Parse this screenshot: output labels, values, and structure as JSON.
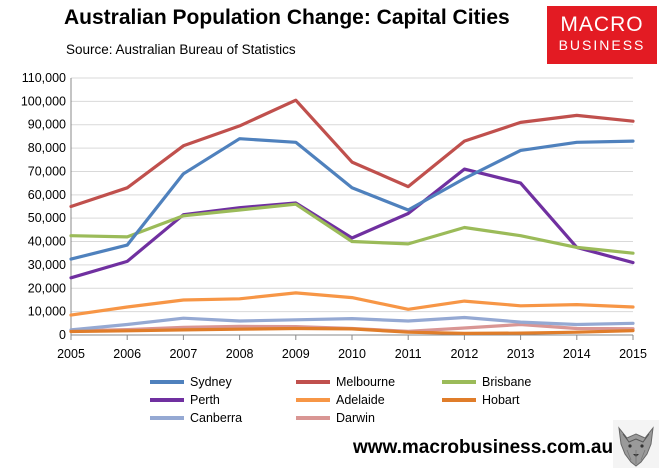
{
  "title": "Australian Population Change: Capital Cities",
  "source": "Source: Australian Bureau of Statistics",
  "logo": {
    "line1": "MACRO",
    "line2": "BUSINESS",
    "color": "#e31b23"
  },
  "website": "www.macrobusiness.com.au",
  "chart_data": {
    "type": "line",
    "x": [
      "2005",
      "2006",
      "2007",
      "2008",
      "2009",
      "2010",
      "2011",
      "2012",
      "2013",
      "2014",
      "2015"
    ],
    "ylim": [
      0,
      110000
    ],
    "yticks": [
      0,
      10000,
      20000,
      30000,
      40000,
      50000,
      60000,
      70000,
      80000,
      90000,
      100000,
      110000
    ],
    "ytick_labels": [
      "0",
      "10,000",
      "20,000",
      "30,000",
      "40,000",
      "50,000",
      "60,000",
      "70,000",
      "80,000",
      "90,000",
      "100,000",
      "110,000"
    ],
    "grid": true,
    "legend_position": "bottom",
    "series": [
      {
        "name": "Sydney",
        "color": "#4f81bd",
        "values": [
          32500,
          38500,
          69000,
          84000,
          82500,
          63000,
          53500,
          67000,
          79000,
          82500,
          83000
        ]
      },
      {
        "name": "Melbourne",
        "color": "#c0504d",
        "values": [
          55000,
          63000,
          81000,
          89500,
          100500,
          74000,
          63500,
          83000,
          91000,
          94000,
          91500
        ]
      },
      {
        "name": "Brisbane",
        "color": "#9bbb59",
        "values": [
          42500,
          42000,
          51000,
          53500,
          56000,
          40000,
          39000,
          46000,
          42500,
          37500,
          35000
        ]
      },
      {
        "name": "Perth",
        "color": "#7030a0",
        "values": [
          24500,
          31500,
          51500,
          54500,
          56500,
          41500,
          52000,
          71000,
          65000,
          37500,
          31000
        ]
      },
      {
        "name": "Adelaide",
        "color": "#f79646",
        "values": [
          8500,
          12000,
          15000,
          15500,
          18000,
          16000,
          11000,
          14500,
          12500,
          13000,
          12000
        ]
      },
      {
        "name": "Hobart",
        "color": "#e07d2a",
        "values": [
          1500,
          1800,
          2200,
          2500,
          2800,
          2600,
          1200,
          700,
          800,
          1200,
          1900
        ]
      },
      {
        "name": "Canberra",
        "color": "#95a9d3",
        "values": [
          2200,
          4500,
          7200,
          6000,
          6500,
          7000,
          6000,
          7500,
          5500,
          4500,
          5000
        ]
      },
      {
        "name": "Darwin",
        "color": "#d99694",
        "values": [
          1700,
          2300,
          3300,
          3700,
          3600,
          2800,
          1600,
          3000,
          4500,
          2800,
          2700
        ]
      }
    ]
  }
}
